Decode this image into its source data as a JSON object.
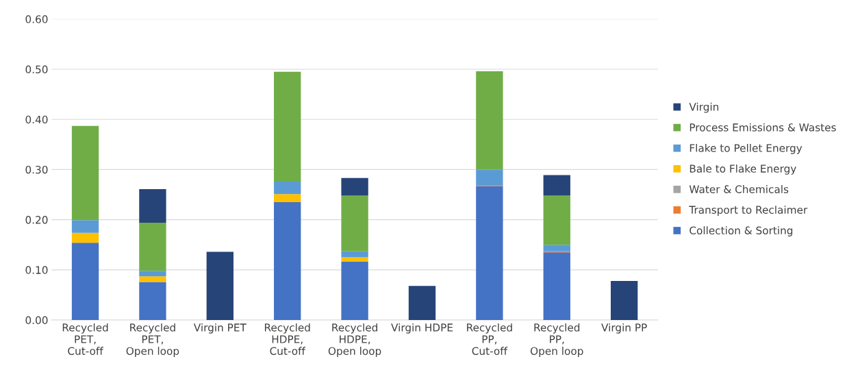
{
  "chart_data": {
    "type": "bar",
    "stacked": true,
    "categories": [
      "Recycled\nPET,\nCut-off",
      "Recycled\nPET,\nOpen loop",
      "Virgin PET",
      "Recycled\nHDPE,\nCut-off",
      "Recycled\nHDPE,\nOpen loop",
      "Virgin HDPE",
      "Recycled\nPP,\nCut-off",
      "Recycled\nPP,\nOpen loop",
      "Virgin PP"
    ],
    "series": [
      {
        "name": "Collection & Sorting",
        "color": "#4472c4",
        "values": [
          0.154,
          0.076,
          null,
          0.235,
          0.116,
          null,
          0.267,
          0.135,
          null
        ]
      },
      {
        "name": "Transport to Reclaimer",
        "color": "#ed7d31",
        "values": [
          null,
          null,
          null,
          null,
          null,
          null,
          0.002,
          0.002,
          null
        ]
      },
      {
        "name": "Water & Chemicals",
        "color": "#a5a5a5",
        "values": [
          null,
          null,
          null,
          null,
          null,
          null,
          null,
          null,
          null
        ]
      },
      {
        "name": "Bale to Flake Energy",
        "color": "#ffc000",
        "values": [
          0.02,
          0.011,
          null,
          0.016,
          0.009,
          null,
          null,
          null,
          null
        ]
      },
      {
        "name": "Flake to Pellet Energy",
        "color": "#5b9bd5",
        "values": [
          0.025,
          0.011,
          null,
          0.025,
          0.012,
          null,
          0.031,
          0.013,
          null
        ]
      },
      {
        "name": "Process Emissions & Wastes",
        "color": "#70ad47",
        "values": [
          0.188,
          0.096,
          null,
          0.219,
          0.111,
          null,
          0.196,
          0.098,
          null
        ]
      },
      {
        "name": "Virgin",
        "color": "#264478",
        "values": [
          null,
          0.067,
          0.136,
          null,
          0.035,
          0.068,
          null,
          0.041,
          0.078
        ]
      }
    ],
    "ylim": [
      0,
      0.6
    ],
    "yticks": [
      {
        "value": 0,
        "label": "0.00"
      },
      {
        "value": 0.1,
        "label": "0.10"
      },
      {
        "value": 0.2,
        "label": "0.20"
      },
      {
        "value": 0.3,
        "label": "0.30"
      },
      {
        "value": 0.4,
        "label": "0.40"
      },
      {
        "value": 0.5,
        "label": "0.50"
      },
      {
        "value": 0.6,
        "label": "0.60"
      }
    ],
    "grid": "y",
    "legend": "right"
  }
}
